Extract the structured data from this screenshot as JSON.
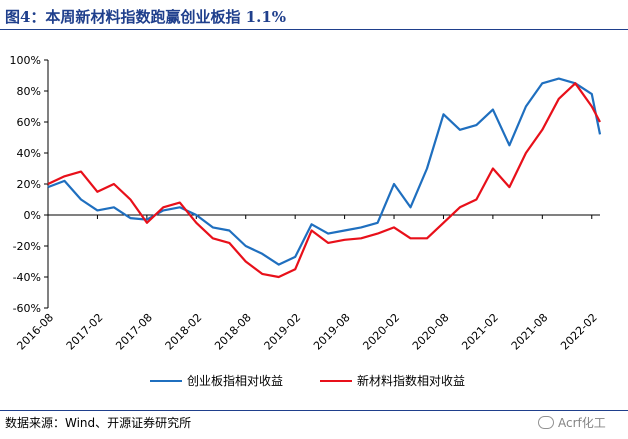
{
  "figure": {
    "title": "图4：本周新材料指数跑赢创业板指 1.1%",
    "source": "数据来源：Wind、开源证券研究所",
    "watermark": "Acrf化工"
  },
  "chart_data": {
    "type": "line",
    "title": "",
    "xlabel": "",
    "ylabel": "",
    "ylim": [
      -60,
      100
    ],
    "y_ticks": [
      "100%",
      "80%",
      "60%",
      "40%",
      "20%",
      "0%",
      "-20%",
      "-40%",
      "-60%"
    ],
    "y_tick_values": [
      100,
      80,
      60,
      40,
      20,
      0,
      -20,
      -40,
      -60
    ],
    "x_ticks": [
      "2016-08",
      "2017-02",
      "2017-08",
      "2018-02",
      "2018-08",
      "2019-02",
      "2019-08",
      "2020-02",
      "2020-08",
      "2021-02",
      "2021-08",
      "2022-02"
    ],
    "legend_position": "bottom",
    "grid": false,
    "series": [
      {
        "name": "创业板指相对收益",
        "color": "#1f6fbf",
        "x": [
          "2016-08",
          "2016-10",
          "2016-12",
          "2017-02",
          "2017-04",
          "2017-06",
          "2017-08",
          "2017-10",
          "2017-12",
          "2018-02",
          "2018-04",
          "2018-06",
          "2018-08",
          "2018-10",
          "2018-12",
          "2019-02",
          "2019-04",
          "2019-06",
          "2019-08",
          "2019-10",
          "2019-12",
          "2020-02",
          "2020-04",
          "2020-06",
          "2020-08",
          "2020-10",
          "2020-12",
          "2021-02",
          "2021-04",
          "2021-06",
          "2021-08",
          "2021-10",
          "2021-12",
          "2022-02",
          "2022-03"
        ],
        "values": [
          18,
          22,
          10,
          3,
          5,
          -2,
          -3,
          3,
          5,
          0,
          -8,
          -10,
          -20,
          -25,
          -32,
          -27,
          -6,
          -12,
          -10,
          -8,
          -5,
          20,
          5,
          30,
          65,
          55,
          58,
          68,
          45,
          70,
          85,
          88,
          85,
          78,
          52
        ]
      },
      {
        "name": "新材料指数相对收益",
        "color": "#e8101a",
        "x": [
          "2016-08",
          "2016-10",
          "2016-12",
          "2017-02",
          "2017-04",
          "2017-06",
          "2017-08",
          "2017-10",
          "2017-12",
          "2018-02",
          "2018-04",
          "2018-06",
          "2018-08",
          "2018-10",
          "2018-12",
          "2019-02",
          "2019-04",
          "2019-06",
          "2019-08",
          "2019-10",
          "2019-12",
          "2020-02",
          "2020-04",
          "2020-06",
          "2020-08",
          "2020-10",
          "2020-12",
          "2021-02",
          "2021-04",
          "2021-06",
          "2021-08",
          "2021-10",
          "2021-12",
          "2022-02",
          "2022-03"
        ],
        "values": [
          20,
          25,
          28,
          15,
          20,
          10,
          -5,
          5,
          8,
          -5,
          -15,
          -18,
          -30,
          -38,
          -40,
          -35,
          -10,
          -18,
          -16,
          -15,
          -12,
          -8,
          -15,
          -15,
          -5,
          5,
          10,
          30,
          18,
          40,
          55,
          75,
          85,
          70,
          60
        ]
      }
    ]
  }
}
